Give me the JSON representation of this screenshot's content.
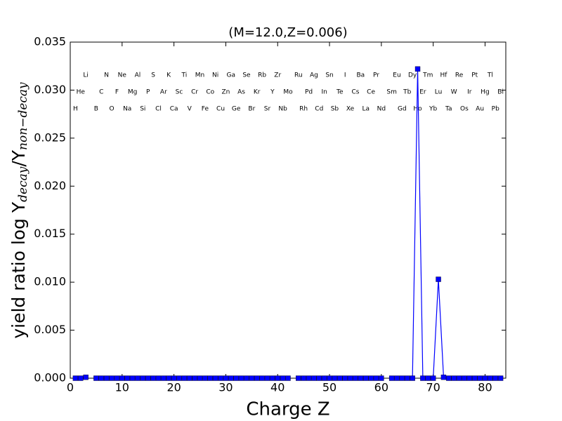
{
  "chart_data": {
    "type": "line",
    "title": "(M=12.0,Z=0.006)",
    "xlabel": "Charge Z",
    "ylabel": [
      "yield ratio log Y",
      "decay",
      "/Y",
      "non−decay"
    ],
    "color": "#0000ff",
    "marker": "square",
    "x": [
      1,
      2,
      3,
      4,
      5,
      6,
      7,
      8,
      9,
      10,
      11,
      12,
      13,
      14,
      15,
      16,
      17,
      18,
      19,
      20,
      21,
      22,
      23,
      24,
      25,
      26,
      27,
      28,
      29,
      30,
      31,
      32,
      33,
      34,
      35,
      36,
      37,
      38,
      39,
      40,
      41,
      42,
      43,
      44,
      45,
      46,
      47,
      48,
      49,
      50,
      51,
      52,
      53,
      54,
      55,
      56,
      57,
      58,
      59,
      60,
      61,
      62,
      63,
      64,
      65,
      66,
      67,
      68,
      69,
      70,
      71,
      72,
      73,
      74,
      75,
      76,
      77,
      78,
      79,
      80,
      81,
      82,
      83
    ],
    "values": [
      0,
      0,
      0.0001,
      null,
      0,
      0,
      0,
      0,
      0,
      0,
      0,
      0,
      0,
      0,
      0,
      0,
      0,
      0,
      0,
      0,
      0,
      0,
      0,
      0,
      0,
      0,
      0,
      0,
      0,
      0,
      0,
      0,
      0,
      0,
      0,
      0,
      0,
      0,
      0,
      0,
      0,
      0,
      null,
      0,
      0,
      0,
      0,
      0,
      0,
      0,
      0,
      0,
      0,
      0,
      0,
      0,
      0,
      0,
      0,
      0,
      null,
      0,
      0,
      0,
      0,
      0,
      0.0322,
      0,
      0,
      0,
      0.0103,
      0.0001,
      0,
      0,
      0,
      0,
      0,
      0,
      0,
      0,
      0,
      0,
      0
    ],
    "xlim": [
      0,
      84
    ],
    "ylim": [
      0,
      0.035
    ],
    "xticks": [
      0,
      10,
      20,
      30,
      40,
      50,
      60,
      70,
      80
    ],
    "yticks": [
      {
        "value": 0,
        "label": "0.000"
      },
      {
        "value": 0.005,
        "label": "0.005"
      },
      {
        "value": 0.01,
        "label": "0.010"
      },
      {
        "value": 0.015,
        "label": "0.015"
      },
      {
        "value": 0.02,
        "label": "0.020"
      },
      {
        "value": 0.025,
        "label": "0.025"
      },
      {
        "value": 0.03,
        "label": "0.030"
      },
      {
        "value": 0.035,
        "label": "0.035"
      }
    ],
    "annotations": [
      {
        "text": "H",
        "x": 1
      },
      {
        "text": "He",
        "x": 2
      },
      {
        "text": "Li",
        "x": 3
      },
      {
        "text": "B",
        "x": 5
      },
      {
        "text": "C",
        "x": 6
      },
      {
        "text": "N",
        "x": 7
      },
      {
        "text": "O",
        "x": 8
      },
      {
        "text": "F",
        "x": 9
      },
      {
        "text": "Ne",
        "x": 10
      },
      {
        "text": "Na",
        "x": 11
      },
      {
        "text": "Mg",
        "x": 12
      },
      {
        "text": "Al",
        "x": 13
      },
      {
        "text": "Si",
        "x": 14
      },
      {
        "text": "P",
        "x": 15
      },
      {
        "text": "S",
        "x": 16
      },
      {
        "text": "Cl",
        "x": 17
      },
      {
        "text": "Ar",
        "x": 18
      },
      {
        "text": "K",
        "x": 19
      },
      {
        "text": "Ca",
        "x": 20
      },
      {
        "text": "Sc",
        "x": 21
      },
      {
        "text": "Ti",
        "x": 22
      },
      {
        "text": "V",
        "x": 23
      },
      {
        "text": "Cr",
        "x": 24
      },
      {
        "text": "Mn",
        "x": 25
      },
      {
        "text": "Fe",
        "x": 26
      },
      {
        "text": "Co",
        "x": 27
      },
      {
        "text": "Ni",
        "x": 28
      },
      {
        "text": "Cu",
        "x": 29
      },
      {
        "text": "Zn",
        "x": 30
      },
      {
        "text": "Ga",
        "x": 31
      },
      {
        "text": "Ge",
        "x": 32
      },
      {
        "text": "As",
        "x": 33
      },
      {
        "text": "Se",
        "x": 34
      },
      {
        "text": "Br",
        "x": 35
      },
      {
        "text": "Kr",
        "x": 36
      },
      {
        "text": "Rb",
        "x": 37
      },
      {
        "text": "Sr",
        "x": 38
      },
      {
        "text": "Y",
        "x": 39
      },
      {
        "text": "Zr",
        "x": 40
      },
      {
        "text": "Nb",
        "x": 41
      },
      {
        "text": "Mo",
        "x": 42
      },
      {
        "text": "Ru",
        "x": 44
      },
      {
        "text": "Rh",
        "x": 45
      },
      {
        "text": "Pd",
        "x": 46
      },
      {
        "text": "Ag",
        "x": 47
      },
      {
        "text": "Cd",
        "x": 48
      },
      {
        "text": "In",
        "x": 49
      },
      {
        "text": "Sn",
        "x": 50
      },
      {
        "text": "Sb",
        "x": 51
      },
      {
        "text": "Te",
        "x": 52
      },
      {
        "text": "I",
        "x": 53
      },
      {
        "text": "Xe",
        "x": 54
      },
      {
        "text": "Cs",
        "x": 55
      },
      {
        "text": "Ba",
        "x": 56
      },
      {
        "text": "La",
        "x": 57
      },
      {
        "text": "Ce",
        "x": 58
      },
      {
        "text": "Pr",
        "x": 59
      },
      {
        "text": "Nd",
        "x": 60
      },
      {
        "text": "Sm",
        "x": 62
      },
      {
        "text": "Eu",
        "x": 63
      },
      {
        "text": "Gd",
        "x": 64
      },
      {
        "text": "Tb",
        "x": 65
      },
      {
        "text": "Dy",
        "x": 66
      },
      {
        "text": "Ho",
        "x": 67
      },
      {
        "text": "Er",
        "x": 68
      },
      {
        "text": "Tm",
        "x": 69
      },
      {
        "text": "Yb",
        "x": 70
      },
      {
        "text": "Lu",
        "x": 71
      },
      {
        "text": "Hf",
        "x": 72
      },
      {
        "text": "Ta",
        "x": 73
      },
      {
        "text": "W",
        "x": 74
      },
      {
        "text": "Re",
        "x": 75
      },
      {
        "text": "Os",
        "x": 76
      },
      {
        "text": "Ir",
        "x": 77
      },
      {
        "text": "Pt",
        "x": 78
      },
      {
        "text": "Au",
        "x": 79
      },
      {
        "text": "Hg",
        "x": 80
      },
      {
        "text": "Tl",
        "x": 81
      },
      {
        "text": "Pb",
        "x": 82
      },
      {
        "text": "Bi",
        "x": 83
      }
    ]
  }
}
